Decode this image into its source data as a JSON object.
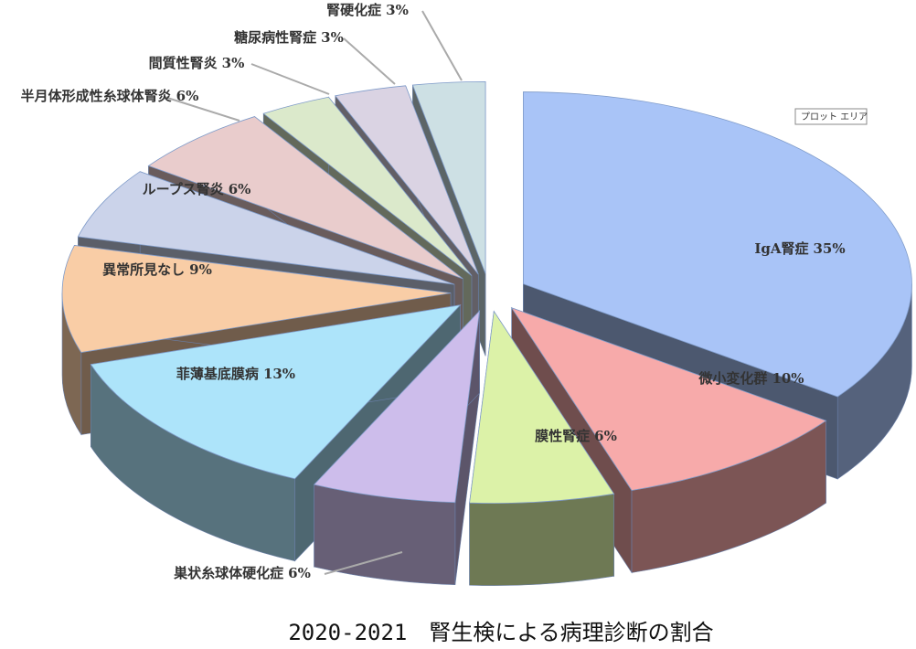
{
  "chart_data": {
    "type": "pie3d",
    "title": "2020-2021　腎生検による病理診断の割合",
    "annotation": "プロット エリア",
    "categories": [
      "IgA腎症",
      "微小変化群",
      "膜性腎症",
      "巣状糸球体硬化症",
      "菲薄基底膜病",
      "異常所見なし",
      "ループス腎炎",
      "半月体形成性糸球体腎炎",
      "間質性腎炎",
      "糖尿病性腎症",
      "腎硬化症"
    ],
    "values": [
      35,
      10,
      6,
      6,
      13,
      9,
      6,
      6,
      3,
      3,
      3
    ],
    "value_labels": [
      "35%",
      "10%",
      "6%",
      "6%",
      "13%",
      "9%",
      "6%",
      "6%",
      "3%",
      "3%",
      "3%"
    ],
    "colors": [
      "#a9c4f7",
      "#f7aaaa",
      "#dcf2a8",
      "#cdbdeb",
      "#ade4fa",
      "#f9cda6",
      "#cbd3ea",
      "#e9cccc",
      "#dbe9cb",
      "#dad3e3",
      "#cde0e4"
    ]
  }
}
